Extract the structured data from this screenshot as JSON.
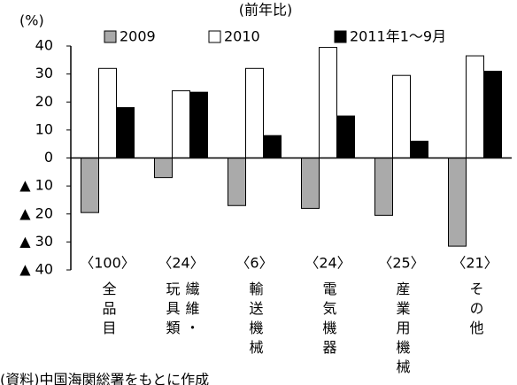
{
  "chart_data": {
    "type": "bar",
    "title": "(前年比)",
    "y_unit": "(%)",
    "categories": [
      "全品目",
      "繊維・玩具類",
      "輸送機械",
      "電気機器",
      "産業用機械",
      "その他"
    ],
    "weights": [
      "〈100〉",
      "〈24〉",
      "〈6〉",
      "〈24〉",
      "〈25〉",
      "〈21〉"
    ],
    "series": [
      {
        "name": "2009",
        "color": "#aaaaaa",
        "values": [
          -19.5,
          -7,
          -17,
          -18,
          -20.5,
          -31.5
        ]
      },
      {
        "name": "2010",
        "color": "#ffffff",
        "values": [
          32,
          24,
          32,
          39.5,
          29.5,
          36.5
        ]
      },
      {
        "name": "2011年1～9月",
        "color": "#000000",
        "values": [
          18,
          23.5,
          8,
          15,
          6,
          31
        ]
      }
    ],
    "ylim": [
      -40,
      40
    ],
    "yticks": [
      {
        "value": -40,
        "label": "▲ 40"
      },
      {
        "value": -30,
        "label": "▲ 30"
      },
      {
        "value": -20,
        "label": "▲ 20"
      },
      {
        "value": -10,
        "label": "▲ 10"
      },
      0,
      10,
      20,
      30,
      40
    ],
    "grid": false,
    "source": "(資料)中国海関総署をもとに作成"
  }
}
